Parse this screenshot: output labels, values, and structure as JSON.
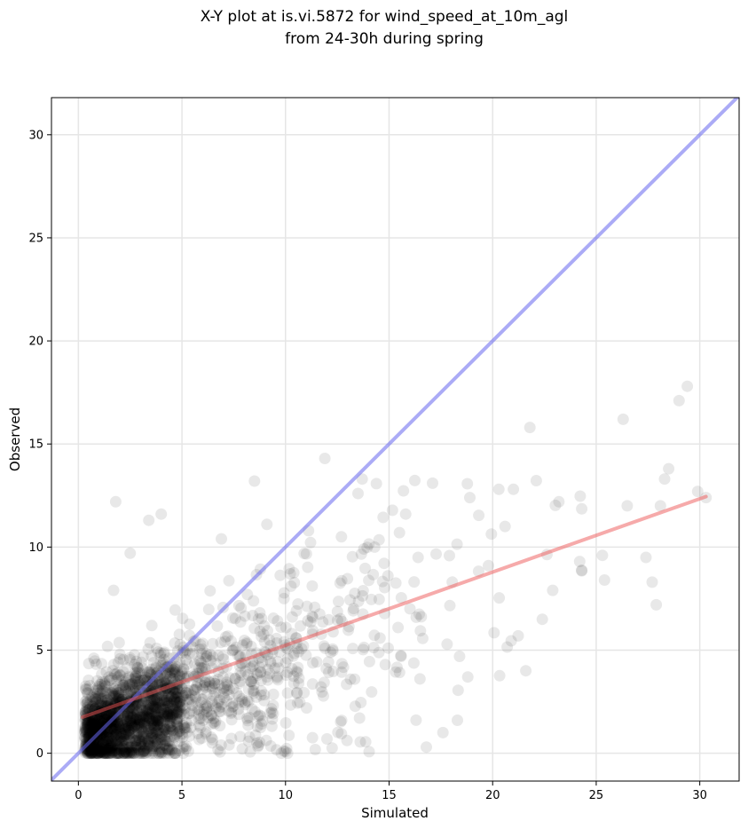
{
  "chart_data": {
    "type": "scatter",
    "title": "X-Y plot at is.vi.5872 for wind_speed_at_10m_agl",
    "subtitle": "from 24-30h during spring",
    "xlabel": "Simulated",
    "ylabel": "Observed",
    "xlim": [
      -1.3,
      31.9
    ],
    "ylim": [
      -1.35,
      31.8
    ],
    "xticks": [
      0,
      5,
      10,
      15,
      20,
      25,
      30
    ],
    "yticks": [
      0,
      5,
      10,
      15,
      20,
      25,
      30
    ],
    "grid": true,
    "legend": "none",
    "colors": {
      "points": "#000000",
      "identity_line": "#6666ee",
      "fit_line": "#ee5555"
    },
    "identity_line": {
      "x": [
        -1.3,
        31.9
      ],
      "y": [
        -1.3,
        31.9
      ]
    },
    "fit_line": {
      "x": [
        0.2,
        30.3
      ],
      "y": [
        1.75,
        12.45
      ]
    },
    "points_visible_outliers": {
      "x": [
        1.8,
        4.0,
        3.4,
        8.5,
        11.9,
        13.7,
        13.5,
        15.8,
        16.4,
        17.1,
        21.8,
        26.3,
        28.5,
        28.3,
        29.0,
        29.4,
        29.9,
        30.3,
        20.3,
        21.0,
        23.2,
        25.3,
        26.5,
        27.4,
        27.7,
        27.9,
        28.1,
        19.8,
        16.8,
        17.6,
        18.3,
        21.6,
        22.4,
        22.9,
        24.2,
        25.4,
        18.8,
        18.4,
        18.9,
        20.6,
        9.8,
        10.1,
        9.1,
        12.7,
        14.3,
        15.5,
        2.5,
        1.7
      ],
      "y": [
        12.2,
        11.6,
        11.3,
        13.2,
        14.3,
        13.3,
        12.6,
        11.6,
        9.5,
        13.1,
        15.8,
        16.2,
        13.8,
        13.3,
        17.1,
        17.8,
        12.7,
        12.4,
        12.8,
        12.8,
        12.2,
        9.6,
        12.0,
        9.5,
        8.3,
        7.2,
        12.0,
        9.1,
        0.3,
        1.0,
        1.6,
        4.0,
        6.5,
        7.9,
        9.3,
        8.4,
        3.7,
        4.7,
        12.4,
        11.0,
        0.0,
        0.0,
        11.1,
        10.5,
        10.0,
        10.7,
        9.7,
        7.9
      ]
    }
  }
}
